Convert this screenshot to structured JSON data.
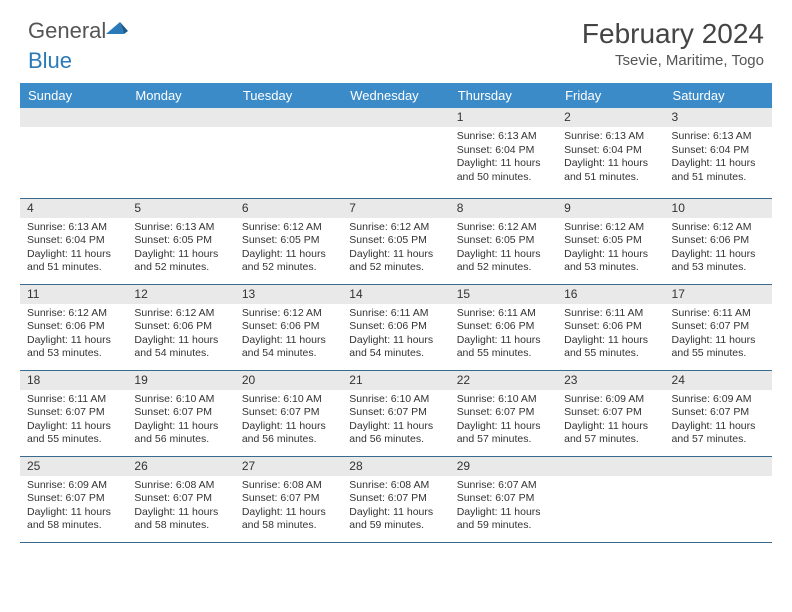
{
  "brand": {
    "general": "General",
    "blue": "Blue"
  },
  "title": "February 2024",
  "location": "Tsevie, Maritime, Togo",
  "colors": {
    "header_bg": "#3b8bc9",
    "header_text": "#ffffff",
    "daynum_bg": "#e9e9e9",
    "border": "#3b6a8f",
    "text": "#333333",
    "logo_gray": "#555555",
    "logo_blue": "#2a7ab9"
  },
  "weekdays": [
    "Sunday",
    "Monday",
    "Tuesday",
    "Wednesday",
    "Thursday",
    "Friday",
    "Saturday"
  ],
  "weeks": [
    [
      null,
      null,
      null,
      null,
      {
        "n": "1",
        "sr": "6:13 AM",
        "ss": "6:04 PM",
        "dl": "11 hours and 50 minutes."
      },
      {
        "n": "2",
        "sr": "6:13 AM",
        "ss": "6:04 PM",
        "dl": "11 hours and 51 minutes."
      },
      {
        "n": "3",
        "sr": "6:13 AM",
        "ss": "6:04 PM",
        "dl": "11 hours and 51 minutes."
      }
    ],
    [
      {
        "n": "4",
        "sr": "6:13 AM",
        "ss": "6:04 PM",
        "dl": "11 hours and 51 minutes."
      },
      {
        "n": "5",
        "sr": "6:13 AM",
        "ss": "6:05 PM",
        "dl": "11 hours and 52 minutes."
      },
      {
        "n": "6",
        "sr": "6:12 AM",
        "ss": "6:05 PM",
        "dl": "11 hours and 52 minutes."
      },
      {
        "n": "7",
        "sr": "6:12 AM",
        "ss": "6:05 PM",
        "dl": "11 hours and 52 minutes."
      },
      {
        "n": "8",
        "sr": "6:12 AM",
        "ss": "6:05 PM",
        "dl": "11 hours and 52 minutes."
      },
      {
        "n": "9",
        "sr": "6:12 AM",
        "ss": "6:05 PM",
        "dl": "11 hours and 53 minutes."
      },
      {
        "n": "10",
        "sr": "6:12 AM",
        "ss": "6:06 PM",
        "dl": "11 hours and 53 minutes."
      }
    ],
    [
      {
        "n": "11",
        "sr": "6:12 AM",
        "ss": "6:06 PM",
        "dl": "11 hours and 53 minutes."
      },
      {
        "n": "12",
        "sr": "6:12 AM",
        "ss": "6:06 PM",
        "dl": "11 hours and 54 minutes."
      },
      {
        "n": "13",
        "sr": "6:12 AM",
        "ss": "6:06 PM",
        "dl": "11 hours and 54 minutes."
      },
      {
        "n": "14",
        "sr": "6:11 AM",
        "ss": "6:06 PM",
        "dl": "11 hours and 54 minutes."
      },
      {
        "n": "15",
        "sr": "6:11 AM",
        "ss": "6:06 PM",
        "dl": "11 hours and 55 minutes."
      },
      {
        "n": "16",
        "sr": "6:11 AM",
        "ss": "6:06 PM",
        "dl": "11 hours and 55 minutes."
      },
      {
        "n": "17",
        "sr": "6:11 AM",
        "ss": "6:07 PM",
        "dl": "11 hours and 55 minutes."
      }
    ],
    [
      {
        "n": "18",
        "sr": "6:11 AM",
        "ss": "6:07 PM",
        "dl": "11 hours and 55 minutes."
      },
      {
        "n": "19",
        "sr": "6:10 AM",
        "ss": "6:07 PM",
        "dl": "11 hours and 56 minutes."
      },
      {
        "n": "20",
        "sr": "6:10 AM",
        "ss": "6:07 PM",
        "dl": "11 hours and 56 minutes."
      },
      {
        "n": "21",
        "sr": "6:10 AM",
        "ss": "6:07 PM",
        "dl": "11 hours and 56 minutes."
      },
      {
        "n": "22",
        "sr": "6:10 AM",
        "ss": "6:07 PM",
        "dl": "11 hours and 57 minutes."
      },
      {
        "n": "23",
        "sr": "6:09 AM",
        "ss": "6:07 PM",
        "dl": "11 hours and 57 minutes."
      },
      {
        "n": "24",
        "sr": "6:09 AM",
        "ss": "6:07 PM",
        "dl": "11 hours and 57 minutes."
      }
    ],
    [
      {
        "n": "25",
        "sr": "6:09 AM",
        "ss": "6:07 PM",
        "dl": "11 hours and 58 minutes."
      },
      {
        "n": "26",
        "sr": "6:08 AM",
        "ss": "6:07 PM",
        "dl": "11 hours and 58 minutes."
      },
      {
        "n": "27",
        "sr": "6:08 AM",
        "ss": "6:07 PM",
        "dl": "11 hours and 58 minutes."
      },
      {
        "n": "28",
        "sr": "6:08 AM",
        "ss": "6:07 PM",
        "dl": "11 hours and 59 minutes."
      },
      {
        "n": "29",
        "sr": "6:07 AM",
        "ss": "6:07 PM",
        "dl": "11 hours and 59 minutes."
      },
      null,
      null
    ]
  ],
  "labels": {
    "sunrise": "Sunrise:",
    "sunset": "Sunset:",
    "daylight": "Daylight:"
  }
}
